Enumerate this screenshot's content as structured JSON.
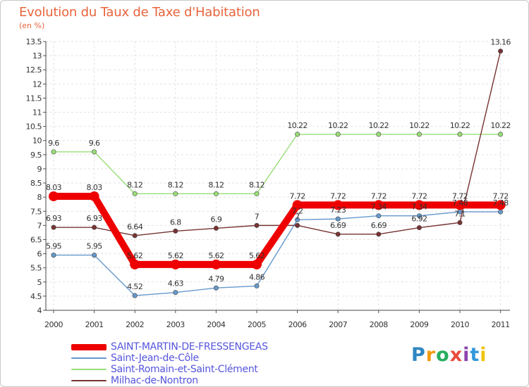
{
  "header": {
    "title": "Evolution du Taux de Taxe d'Habitation",
    "unit": "(en %)"
  },
  "logo": {
    "letters": [
      "P",
      "r",
      "o",
      "x",
      "i",
      "t",
      "i"
    ],
    "colors": [
      "#2e86c1",
      "#f39c12",
      "#27ae60",
      "#e74c3c",
      "#8e44ad",
      "#3498db",
      "#f1c40f"
    ]
  },
  "chart_data": {
    "type": "line",
    "title": "Evolution du Taux de Taxe d'Habitation",
    "ylabel": "(en %)",
    "xlabel": "",
    "x": [
      "2000",
      "2001",
      "2002",
      "2003",
      "2004",
      "2005",
      "2006",
      "2007",
      "2008",
      "2009",
      "2010",
      "2011"
    ],
    "ylim": [
      4,
      13.5
    ],
    "yticks": [
      "4",
      "4.5",
      "5",
      "5.5",
      "6",
      "6.5",
      "7",
      "7.5",
      "8",
      "8.5",
      "9",
      "9.5",
      "10",
      "10.5",
      "11",
      "11.5",
      "12",
      "12.5",
      "13",
      "13.5"
    ],
    "grid": true,
    "legend_position": "bottom-left",
    "series": [
      {
        "name": "SAINT-MARTIN-DE-FRESSENGEAS",
        "color": "#ee0000",
        "values": [
          8.03,
          8.03,
          5.62,
          5.62,
          5.62,
          5.62,
          7.72,
          7.72,
          7.72,
          7.72,
          7.72,
          7.72
        ],
        "labels": [
          "8.03",
          "8.03",
          "5.62",
          "5.62",
          "5.62",
          "5.62",
          "7.72",
          "7.72",
          "7.72",
          "7.72",
          "7.72",
          "7.72"
        ]
      },
      {
        "name": "Saint-Jean-de-Côle",
        "color": "#6699cc",
        "values": [
          5.95,
          5.95,
          4.52,
          4.63,
          4.79,
          4.86,
          7.2,
          7.23,
          7.34,
          7.34,
          7.48,
          7.48
        ],
        "labels": [
          "5.95",
          "5.95",
          "4.52",
          "4.63",
          "4.79",
          "4.86",
          "7.2",
          "7.23",
          "7.34",
          "7.34",
          "7.48",
          "7.48"
        ]
      },
      {
        "name": "Saint-Romain-et-Saint-Clément",
        "color": "#99dd77",
        "values": [
          9.6,
          9.6,
          8.12,
          8.12,
          8.12,
          8.12,
          10.22,
          10.22,
          10.22,
          10.22,
          10.22,
          10.22
        ],
        "labels": [
          "9.6",
          "9.6",
          "8.12",
          "8.12",
          "8.12",
          "8.12",
          "10.22",
          "10.22",
          "10.22",
          "10.22",
          "10.22",
          "10.22"
        ]
      },
      {
        "name": "Milhac-de-Nontron",
        "color": "#773333",
        "values": [
          6.93,
          6.93,
          6.64,
          6.8,
          6.9,
          7,
          7,
          6.69,
          6.69,
          6.92,
          7.1,
          13.16
        ],
        "labels": [
          "6.93",
          "6.93",
          "6.64",
          "6.8",
          "6.9",
          "7",
          "7",
          "6.69",
          "6.69",
          "6.92",
          "7.1",
          "13.16"
        ]
      }
    ]
  }
}
